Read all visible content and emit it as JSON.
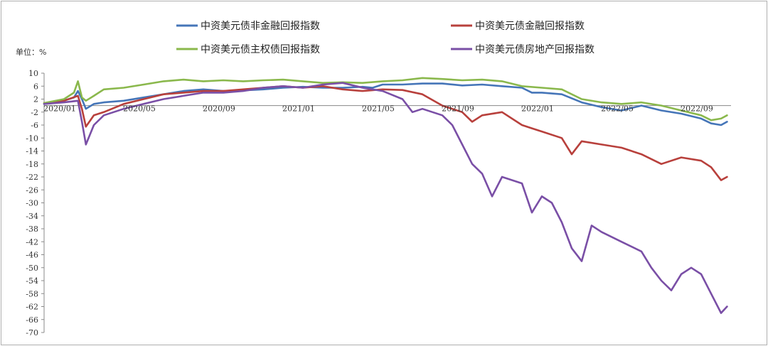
{
  "chart_data": {
    "type": "line",
    "unit_label": "单位：%",
    "ylim": [
      -70,
      10
    ],
    "y_ticks": [
      10,
      6,
      2,
      -2,
      -6,
      -10,
      -14,
      -18,
      -22,
      -26,
      -30,
      -34,
      -38,
      -42,
      -46,
      -50,
      -54,
      -58,
      -62,
      -66,
      -70
    ],
    "x_ticks": [
      {
        "label": "2020/01",
        "t": 0
      },
      {
        "label": "2020/05",
        "t": 4
      },
      {
        "label": "2020/09",
        "t": 8
      },
      {
        "label": "2021/01",
        "t": 12
      },
      {
        "label": "2021/05",
        "t": 16
      },
      {
        "label": "2021/09",
        "t": 20
      },
      {
        "label": "2022/01",
        "t": 24
      },
      {
        "label": "2022/05",
        "t": 28
      },
      {
        "label": "2022/09",
        "t": 32
      }
    ],
    "legend_position": "top",
    "series": [
      {
        "name": "中资美元债非金融回报指数",
        "color": "#4575b8",
        "points": [
          [
            0,
            0.5
          ],
          [
            0.8,
            1.2
          ],
          [
            1.5,
            2.5
          ],
          [
            1.7,
            4.5
          ],
          [
            1.9,
            2.0
          ],
          [
            2.1,
            -1.0
          ],
          [
            2.5,
            0.5
          ],
          [
            3.0,
            1.0
          ],
          [
            4.0,
            1.5
          ],
          [
            5.0,
            2.5
          ],
          [
            6.0,
            3.5
          ],
          [
            7.0,
            4.5
          ],
          [
            8.0,
            5.0
          ],
          [
            9.0,
            4.5
          ],
          [
            10.0,
            4.7
          ],
          [
            11.0,
            5.0
          ],
          [
            12.0,
            5.5
          ],
          [
            13.0,
            5.8
          ],
          [
            14.0,
            5.5
          ],
          [
            15.0,
            5.5
          ],
          [
            16.0,
            5.8
          ],
          [
            16.5,
            5.5
          ],
          [
            17.0,
            6.5
          ],
          [
            18.0,
            6.5
          ],
          [
            19.0,
            6.8
          ],
          [
            20.0,
            6.8
          ],
          [
            21.0,
            6.2
          ],
          [
            22.0,
            6.5
          ],
          [
            23.0,
            6.0
          ],
          [
            24.0,
            5.5
          ],
          [
            24.5,
            4.0
          ],
          [
            25.0,
            4.0
          ],
          [
            26.0,
            3.5
          ],
          [
            27.0,
            1.0
          ],
          [
            28.0,
            -0.5
          ],
          [
            29.0,
            -1.5
          ],
          [
            30.0,
            0.0
          ],
          [
            31.0,
            -1.5
          ],
          [
            32.0,
            -2.5
          ],
          [
            33.0,
            -4.0
          ],
          [
            33.5,
            -5.5
          ],
          [
            34.0,
            -6.0
          ],
          [
            34.3,
            -5.0
          ]
        ]
      },
      {
        "name": "中资美元债金融回报指数",
        "color": "#b8403c",
        "points": [
          [
            0,
            0.8
          ],
          [
            1.0,
            1.5
          ],
          [
            1.7,
            3.0
          ],
          [
            1.9,
            -1.0
          ],
          [
            2.1,
            -6.5
          ],
          [
            2.5,
            -3.0
          ],
          [
            3.0,
            -2.0
          ],
          [
            4.0,
            0.5
          ],
          [
            5.0,
            2.0
          ],
          [
            6.0,
            3.5
          ],
          [
            7.0,
            4.0
          ],
          [
            8.0,
            4.5
          ],
          [
            9.0,
            4.5
          ],
          [
            10.0,
            5.0
          ],
          [
            11.0,
            5.5
          ],
          [
            12.0,
            6.0
          ],
          [
            13.0,
            5.5
          ],
          [
            14.0,
            6.0
          ],
          [
            15.0,
            5.0
          ],
          [
            16.0,
            4.5
          ],
          [
            17.0,
            5.0
          ],
          [
            18.0,
            4.8
          ],
          [
            19.0,
            3.5
          ],
          [
            20.0,
            0.0
          ],
          [
            21.0,
            -2.0
          ],
          [
            21.5,
            -5.0
          ],
          [
            22.0,
            -3.0
          ],
          [
            23.0,
            -2.0
          ],
          [
            24.0,
            -6.0
          ],
          [
            24.5,
            -7.0
          ],
          [
            25.0,
            -8.0
          ],
          [
            26.0,
            -10.0
          ],
          [
            26.5,
            -15.0
          ],
          [
            27.0,
            -11.0
          ],
          [
            28.0,
            -12.0
          ],
          [
            29.0,
            -13.0
          ],
          [
            30.0,
            -15.0
          ],
          [
            31.0,
            -18.0
          ],
          [
            32.0,
            -16.0
          ],
          [
            33.0,
            -17.0
          ],
          [
            33.5,
            -19.0
          ],
          [
            34.0,
            -23.0
          ],
          [
            34.3,
            -22.0
          ]
        ]
      },
      {
        "name": "中资美元债主权债回报指数",
        "color": "#8ab84c",
        "points": [
          [
            0,
            0.8
          ],
          [
            1.0,
            2.0
          ],
          [
            1.5,
            4.0
          ],
          [
            1.7,
            7.5
          ],
          [
            1.9,
            2.5
          ],
          [
            2.1,
            1.5
          ],
          [
            2.5,
            3.0
          ],
          [
            3.0,
            5.0
          ],
          [
            4.0,
            5.5
          ],
          [
            5.0,
            6.5
          ],
          [
            6.0,
            7.5
          ],
          [
            7.0,
            8.0
          ],
          [
            8.0,
            7.5
          ],
          [
            9.0,
            7.8
          ],
          [
            10.0,
            7.5
          ],
          [
            11.0,
            7.8
          ],
          [
            12.0,
            8.0
          ],
          [
            13.0,
            7.5
          ],
          [
            14.0,
            7.0
          ],
          [
            15.0,
            7.2
          ],
          [
            16.0,
            7.0
          ],
          [
            17.0,
            7.5
          ],
          [
            18.0,
            7.8
          ],
          [
            19.0,
            8.5
          ],
          [
            20.0,
            8.2
          ],
          [
            21.0,
            7.8
          ],
          [
            22.0,
            8.0
          ],
          [
            23.0,
            7.5
          ],
          [
            24.0,
            6.0
          ],
          [
            25.0,
            5.5
          ],
          [
            26.0,
            5.0
          ],
          [
            27.0,
            2.0
          ],
          [
            28.0,
            1.0
          ],
          [
            29.0,
            0.5
          ],
          [
            30.0,
            1.0
          ],
          [
            31.0,
            0.0
          ],
          [
            32.0,
            -1.5
          ],
          [
            33.0,
            -3.0
          ],
          [
            33.5,
            -4.5
          ],
          [
            34.0,
            -4.0
          ],
          [
            34.3,
            -3.0
          ]
        ]
      },
      {
        "name": "中资美元债房地产回报指数",
        "color": "#7a4fa6",
        "points": [
          [
            0,
            0.5
          ],
          [
            1.0,
            1.0
          ],
          [
            1.7,
            1.5
          ],
          [
            1.9,
            -5.0
          ],
          [
            2.1,
            -12.0
          ],
          [
            2.5,
            -6.0
          ],
          [
            3.0,
            -3.0
          ],
          [
            4.0,
            -1.0
          ],
          [
            5.0,
            0.5
          ],
          [
            6.0,
            2.0
          ],
          [
            7.0,
            3.0
          ],
          [
            8.0,
            4.0
          ],
          [
            9.0,
            4.0
          ],
          [
            10.0,
            4.5
          ],
          [
            11.0,
            5.5
          ],
          [
            12.0,
            6.0
          ],
          [
            13.0,
            5.5
          ],
          [
            14.0,
            6.5
          ],
          [
            15.0,
            7.0
          ],
          [
            16.0,
            5.5
          ],
          [
            17.0,
            4.5
          ],
          [
            18.0,
            2.0
          ],
          [
            18.5,
            -2.0
          ],
          [
            19.0,
            -1.0
          ],
          [
            20.0,
            -3.0
          ],
          [
            20.5,
            -6.0
          ],
          [
            21.0,
            -12.0
          ],
          [
            21.5,
            -18.0
          ],
          [
            22.0,
            -21.0
          ],
          [
            22.5,
            -28.0
          ],
          [
            23.0,
            -22.0
          ],
          [
            24.0,
            -24.0
          ],
          [
            24.5,
            -33.0
          ],
          [
            25.0,
            -28.0
          ],
          [
            25.5,
            -30.0
          ],
          [
            26.0,
            -36.0
          ],
          [
            26.5,
            -44.0
          ],
          [
            27.0,
            -48.0
          ],
          [
            27.5,
            -37.0
          ],
          [
            28.0,
            -39.0
          ],
          [
            29.0,
            -42.0
          ],
          [
            30.0,
            -45.0
          ],
          [
            30.5,
            -50.0
          ],
          [
            31.0,
            -54.0
          ],
          [
            31.5,
            -57.0
          ],
          [
            32.0,
            -52.0
          ],
          [
            32.5,
            -50.0
          ],
          [
            33.0,
            -52.0
          ],
          [
            33.5,
            -58.0
          ],
          [
            34.0,
            -64.0
          ],
          [
            34.3,
            -62.0
          ]
        ]
      }
    ]
  }
}
